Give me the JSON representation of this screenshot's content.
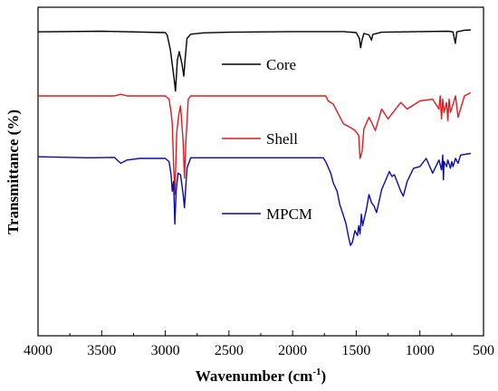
{
  "chart_data": {
    "type": "line",
    "xlabel": "Wavenumber (cm",
    "xlabel_sup": "-1",
    "xlabel_close": ")",
    "ylabel": "Transmittance (%)",
    "xlim": [
      4000,
      500
    ],
    "x_reversed": true,
    "ylim": [
      0,
      100
    ],
    "y_ticks_labeled": false,
    "grid": false,
    "legend_placement": "inline, right of main peaks",
    "x_ticks": [
      4000,
      3500,
      3000,
      2500,
      2000,
      1500,
      1000,
      500
    ],
    "x_tick_labels": [
      "4000",
      "3500",
      "3000",
      "2500",
      "2000",
      "1500",
      "1000",
      "500"
    ],
    "series": [
      {
        "name": "Core",
        "color": "#000000",
        "x": [
          4000,
          3500,
          3000,
          2985,
          2960,
          2950,
          2930,
          2920,
          2905,
          2890,
          2870,
          2855,
          2845,
          2830,
          2800,
          2700,
          2500,
          2000,
          1600,
          1500,
          1475,
          1465,
          1455,
          1440,
          1400,
          1380,
          1370,
          1300,
          1000,
          780,
          740,
          721,
          710,
          650,
          600
        ],
        "y": [
          92.5,
          92.7,
          92.3,
          91.5,
          87,
          84,
          78,
          74.5,
          84,
          86.5,
          83,
          79,
          84,
          90.5,
          91.8,
          92.2,
          92.4,
          92.6,
          92.6,
          92.3,
          90.5,
          87.7,
          90,
          92,
          91.6,
          90,
          91.7,
          92.4,
          92.6,
          92.7,
          92.5,
          89,
          92.5,
          93,
          93.1
        ]
      },
      {
        "name": "Shell",
        "color": "#e41a1c",
        "x": [
          4000,
          3400,
          3350,
          3300,
          3000,
          2970,
          2955,
          2945,
          2935,
          2925,
          2910,
          2895,
          2880,
          2860,
          2850,
          2840,
          2820,
          2800,
          2500,
          2000,
          1740,
          1720,
          1680,
          1640,
          1600,
          1550,
          1510,
          1480,
          1470,
          1455,
          1440,
          1400,
          1380,
          1350,
          1300,
          1250,
          1200,
          1150,
          1100,
          1000,
          900,
          850,
          840,
          830,
          820,
          810,
          790,
          780,
          770,
          760,
          720,
          700,
          650,
          600
        ],
        "y": [
          73,
          73,
          73.5,
          73,
          73,
          72,
          68,
          64.5,
          52,
          43,
          62,
          67,
          70,
          59,
          48,
          58,
          72,
          73,
          73,
          73,
          73,
          71.5,
          70.5,
          67.5,
          64.5,
          63.5,
          62.5,
          61,
          54,
          56,
          63,
          66.5,
          65,
          62.5,
          69,
          66,
          68.5,
          71,
          69,
          71.5,
          72,
          69,
          73,
          66,
          72,
          68,
          71,
          65.5,
          72,
          68,
          73,
          66.5,
          73,
          74
        ]
      },
      {
        "name": "MPCM",
        "color": "#0a0aaa",
        "x": [
          4000,
          3600,
          3400,
          3350,
          3300,
          3200,
          3000,
          2970,
          2955,
          2945,
          2935,
          2925,
          2915,
          2900,
          2880,
          2860,
          2850,
          2840,
          2830,
          2800,
          2500,
          2000,
          1760,
          1740,
          1700,
          1680,
          1650,
          1630,
          1600,
          1580,
          1560,
          1545,
          1530,
          1510,
          1490,
          1480,
          1470,
          1460,
          1450,
          1420,
          1400,
          1380,
          1360,
          1340,
          1300,
          1240,
          1220,
          1200,
          1150,
          1130,
          1100,
          1050,
          1000,
          950,
          900,
          850,
          830,
          820,
          815,
          810,
          790,
          780,
          760,
          750,
          740,
          720,
          700,
          680,
          600
        ],
        "y": [
          54.5,
          54.2,
          54.3,
          52.5,
          53.5,
          54,
          54,
          53,
          49,
          44,
          47,
          34,
          44,
          49.5,
          49,
          43,
          39,
          45,
          51,
          54.2,
          54.2,
          54.2,
          54.2,
          53,
          49.5,
          46.5,
          44,
          40,
          36.5,
          34,
          30,
          27.5,
          28.5,
          32,
          30.5,
          33.5,
          31,
          37,
          33.5,
          38.5,
          43,
          40.5,
          39.5,
          37.5,
          44.5,
          50,
          48.5,
          49,
          44,
          42.5,
          47,
          51,
          51.5,
          54,
          49.5,
          53.5,
          50.5,
          55,
          47.5,
          53,
          51.5,
          53.5,
          51,
          53,
          51.5,
          54,
          52.5,
          55,
          55.5
        ]
      }
    ],
    "legend": [
      {
        "label": "Core",
        "color": "#000000"
      },
      {
        "label": "Shell",
        "color": "#e41a1c"
      },
      {
        "label": "MPCM",
        "color": "#0a0aaa"
      }
    ]
  }
}
